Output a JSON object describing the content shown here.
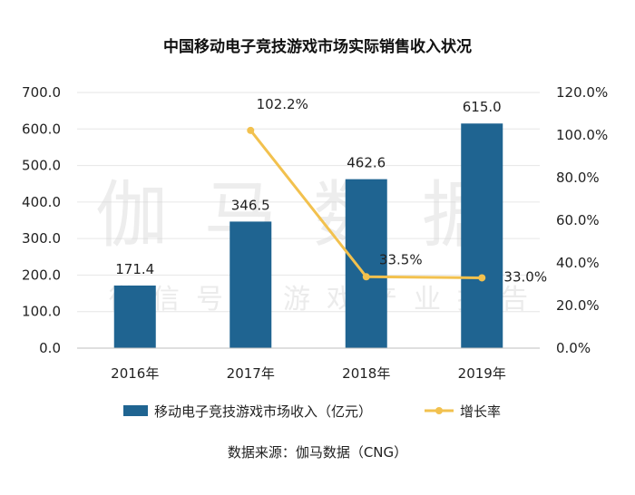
{
  "chart_data": {
    "type": "bar",
    "title": "中国移动电子竞技游戏市场实际销售收入状况",
    "categories": [
      "2016年",
      "2017年",
      "2018年",
      "2019年"
    ],
    "series": [
      {
        "name": "移动电子竞技游戏市场收入（亿元）",
        "type": "bar",
        "axis": "left",
        "values": [
          171.4,
          346.5,
          462.6,
          615.0
        ],
        "labels": [
          "171.4",
          "346.5",
          "462.6",
          "615.0"
        ],
        "color": "#1f6491"
      },
      {
        "name": "增长率",
        "type": "line",
        "axis": "right",
        "values": [
          null,
          102.2,
          33.5,
          33.0
        ],
        "labels": [
          "",
          "102.2%",
          "33.5%",
          "33.0%"
        ],
        "color": "#f2c14e"
      }
    ],
    "y_left": {
      "min": 0,
      "max": 700,
      "ticks": [
        "0.0",
        "100.0",
        "200.0",
        "300.0",
        "400.0",
        "500.0",
        "600.0",
        "700.0"
      ]
    },
    "y_right": {
      "min": 0,
      "max": 120,
      "ticks": [
        "0.0%",
        "20.0%",
        "40.0%",
        "60.0%",
        "80.0%",
        "100.0%",
        "120.0%"
      ]
    },
    "grid": true,
    "legend_position": "bottom"
  },
  "watermark": {
    "line1": "伽马数据",
    "line2": "微信号：游戏产业报告"
  },
  "source": "数据来源：伽马数据（CNG）"
}
